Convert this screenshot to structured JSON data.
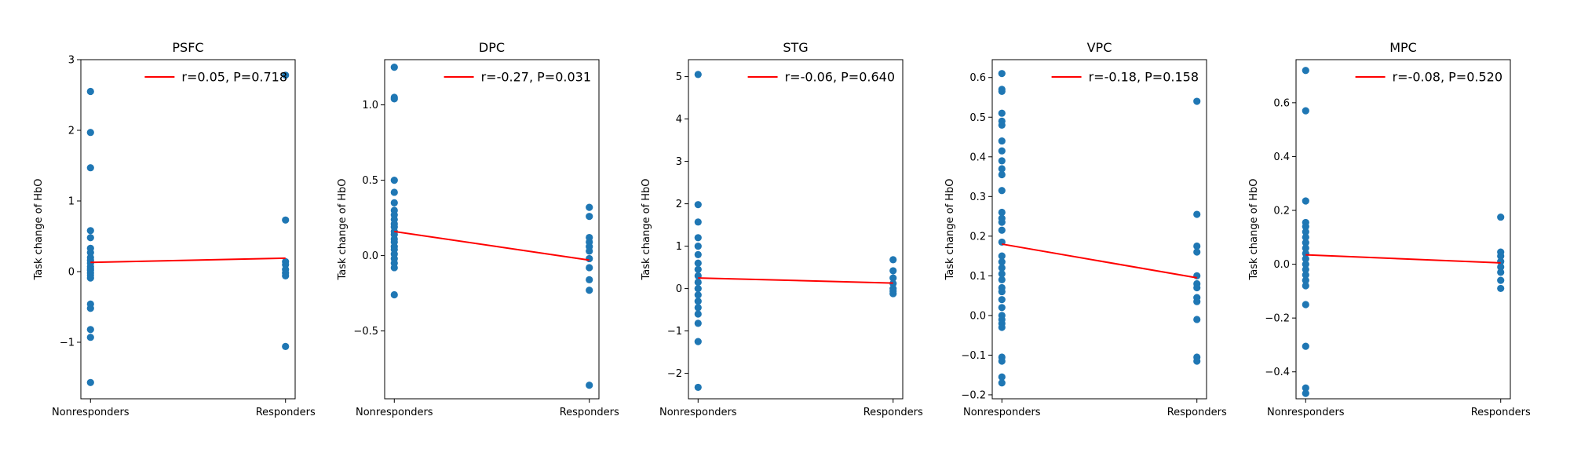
{
  "chart_data": [
    {
      "type": "scatter",
      "title": "PSFC",
      "ylabel": "Task change of HbO",
      "xlabel": "",
      "categories": [
        "Nonresponders",
        "Responders"
      ],
      "ylim": [
        -1.8,
        3.0
      ],
      "yticks": [
        -1,
        0,
        1,
        2,
        3
      ],
      "ytick_labels": [
        "−1",
        "0",
        "1",
        "2",
        "3"
      ],
      "legend": {
        "label": "r=0.05, P=0.718",
        "placement": "upper right"
      },
      "fit": {
        "start": 0.13,
        "end": 0.19
      },
      "groups": [
        {
          "category": "Nonresponders",
          "values": [
            2.55,
            1.97,
            1.47,
            0.58,
            0.48,
            0.33,
            0.27,
            0.2,
            0.16,
            0.12,
            0.07,
            0.04,
            0.02,
            -0.02,
            -0.05,
            -0.09,
            -0.46,
            -0.52,
            -0.82,
            -0.93,
            -1.57
          ]
        },
        {
          "category": "Responders",
          "values": [
            2.78,
            0.73,
            0.14,
            0.1,
            0.03,
            -0.02,
            -0.06,
            -1.06
          ]
        }
      ],
      "marker_color": "#1f77b4",
      "fit_color": "#ff0000"
    },
    {
      "type": "scatter",
      "title": "DPC",
      "ylabel": "Task change of HbO",
      "xlabel": "",
      "categories": [
        "Nonresponders",
        "Responders"
      ],
      "ylim": [
        -0.95,
        1.3
      ],
      "yticks": [
        -0.5,
        0.0,
        0.5,
        1.0
      ],
      "ytick_labels": [
        "−0.5",
        "0.0",
        "0.5",
        "1.0"
      ],
      "legend": {
        "label": "r=-0.27, P=0.031",
        "placement": "upper right"
      },
      "fit": {
        "start": 0.16,
        "end": -0.03
      },
      "groups": [
        {
          "category": "Nonresponders",
          "values": [
            1.25,
            1.05,
            1.04,
            0.5,
            0.42,
            0.35,
            0.3,
            0.27,
            0.24,
            0.21,
            0.19,
            0.16,
            0.14,
            0.11,
            0.09,
            0.06,
            0.04,
            0.01,
            -0.02,
            -0.05,
            -0.08,
            -0.26
          ]
        },
        {
          "category": "Responders",
          "values": [
            0.32,
            0.26,
            0.12,
            0.09,
            0.06,
            0.03,
            -0.02,
            -0.08,
            -0.16,
            -0.23,
            -0.86
          ]
        }
      ],
      "marker_color": "#1f77b4",
      "fit_color": "#ff0000"
    },
    {
      "type": "scatter",
      "title": "STG",
      "ylabel": "Task change of HbO",
      "xlabel": "",
      "categories": [
        "Nonresponders",
        "Responders"
      ],
      "ylim": [
        -2.6,
        5.4
      ],
      "yticks": [
        -2,
        -1,
        0,
        1,
        2,
        3,
        4,
        5
      ],
      "ytick_labels": [
        "−2",
        "−1",
        "0",
        "1",
        "2",
        "3",
        "4",
        "5"
      ],
      "legend": {
        "label": "r=-0.06, P=0.640",
        "placement": "upper right"
      },
      "fit": {
        "start": 0.25,
        "end": 0.13
      },
      "groups": [
        {
          "category": "Nonresponders",
          "values": [
            5.05,
            1.98,
            1.57,
            1.2,
            1.0,
            0.8,
            0.6,
            0.45,
            0.3,
            0.15,
            0.0,
            -0.15,
            -0.3,
            -0.45,
            -0.6,
            -0.82,
            -1.25,
            -2.33
          ]
        },
        {
          "category": "Responders",
          "values": [
            0.68,
            0.42,
            0.25,
            0.12,
            0.0,
            -0.06,
            -0.12
          ]
        }
      ],
      "marker_color": "#1f77b4",
      "fit_color": "#ff0000"
    },
    {
      "type": "scatter",
      "title": "VPC",
      "ylabel": "Task change of HbO",
      "xlabel": "",
      "categories": [
        "Nonresponders",
        "Responders"
      ],
      "ylim": [
        -0.21,
        0.645
      ],
      "yticks": [
        -0.2,
        -0.1,
        0.0,
        0.1,
        0.2,
        0.3,
        0.4,
        0.5,
        0.6
      ],
      "ytick_labels": [
        "−0.2",
        "−0.1",
        "0.0",
        "0.1",
        "0.2",
        "0.3",
        "0.4",
        "0.5",
        "0.6"
      ],
      "legend": {
        "label": "r=-0.18, P=0.158",
        "placement": "upper right"
      },
      "fit": {
        "start": 0.18,
        "end": 0.095
      },
      "groups": [
        {
          "category": "Nonresponders",
          "values": [
            0.61,
            0.57,
            0.565,
            0.51,
            0.49,
            0.48,
            0.44,
            0.415,
            0.39,
            0.37,
            0.355,
            0.315,
            0.26,
            0.245,
            0.235,
            0.215,
            0.185,
            0.15,
            0.135,
            0.12,
            0.105,
            0.09,
            0.07,
            0.06,
            0.04,
            0.02,
            0.0,
            -0.01,
            -0.02,
            -0.03,
            -0.105,
            -0.115,
            -0.155,
            -0.17
          ]
        },
        {
          "category": "Responders",
          "values": [
            0.54,
            0.255,
            0.175,
            0.16,
            0.1,
            0.08,
            0.07,
            0.045,
            0.035,
            -0.01,
            -0.105,
            -0.115
          ]
        }
      ],
      "marker_color": "#1f77b4",
      "fit_color": "#ff0000"
    },
    {
      "type": "scatter",
      "title": "MPC",
      "ylabel": "Task change of HbO",
      "xlabel": "",
      "categories": [
        "Nonresponders",
        "Responders"
      ],
      "ylim": [
        -0.5,
        0.76
      ],
      "yticks": [
        -0.4,
        -0.2,
        0.0,
        0.2,
        0.4,
        0.6
      ],
      "ytick_labels": [
        "−0.4",
        "−0.2",
        "0.0",
        "0.2",
        "0.4",
        "0.6"
      ],
      "legend": {
        "label": "r=-0.08, P=0.520",
        "placement": "upper right"
      },
      "fit": {
        "start": 0.035,
        "end": 0.005
      },
      "groups": [
        {
          "category": "Nonresponders",
          "values": [
            0.72,
            0.57,
            0.235,
            0.155,
            0.14,
            0.12,
            0.1,
            0.08,
            0.06,
            0.04,
            0.02,
            0.0,
            -0.02,
            -0.04,
            -0.06,
            -0.08,
            -0.15,
            -0.305,
            -0.46,
            -0.48
          ]
        },
        {
          "category": "Responders",
          "values": [
            0.175,
            0.045,
            0.03,
            0.01,
            -0.01,
            -0.03,
            -0.06,
            -0.09
          ]
        }
      ],
      "marker_color": "#1f77b4",
      "fit_color": "#ff0000"
    }
  ]
}
